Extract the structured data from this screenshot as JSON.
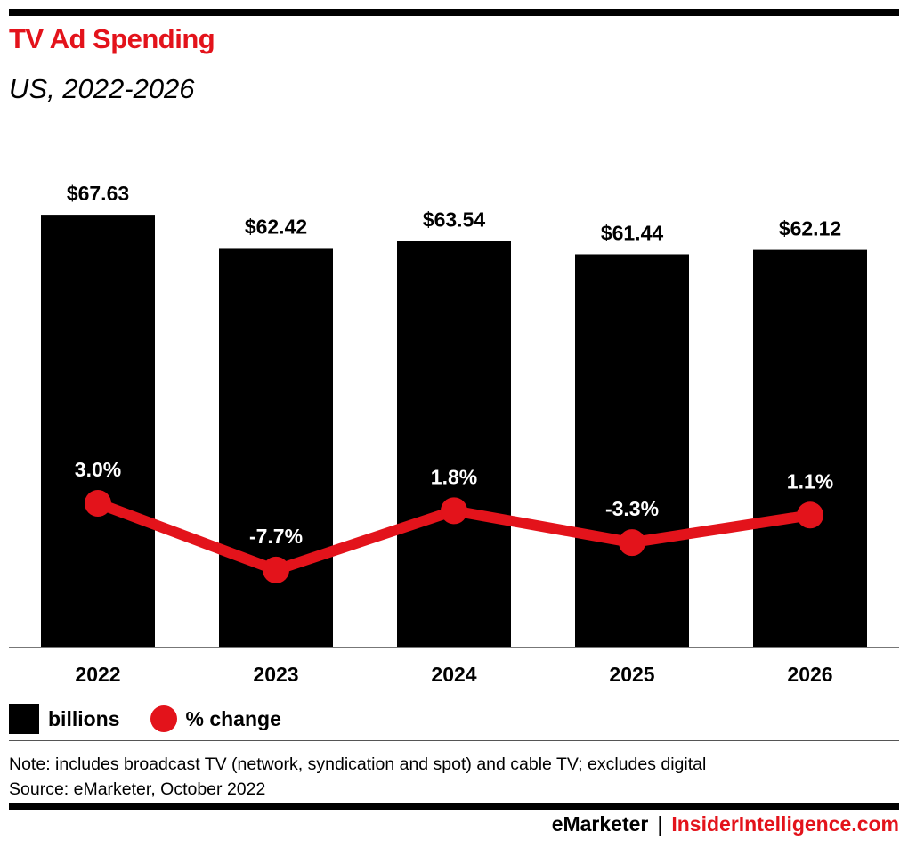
{
  "header": {
    "title": "TV Ad Spending",
    "subtitle": "US, 2022-2026"
  },
  "colors": {
    "title": "#e3131b",
    "bars": "#000000",
    "line": "#e3131b",
    "point_label": "#ffffff"
  },
  "legend": {
    "bar_label": "billions",
    "line_label": "% change"
  },
  "notes": {
    "note": "Note: includes broadcast TV (network, syndication and spot) and cable TV; excludes digital",
    "source": "Source: eMarketer, October 2022"
  },
  "footer": {
    "brand1": "eMarketer",
    "separator": "|",
    "brand2": "InsiderIntelligence.com"
  },
  "chart_data": {
    "type": "bar",
    "categories": [
      "2022",
      "2023",
      "2024",
      "2025",
      "2026"
    ],
    "series": [
      {
        "name": "billions",
        "type": "bar",
        "values": [
          67.63,
          62.42,
          63.54,
          61.44,
          62.12
        ],
        "labels": [
          "$67.63",
          "$62.42",
          "$63.54",
          "$61.44",
          "$62.12"
        ]
      },
      {
        "name": "% change",
        "type": "line",
        "values": [
          3.0,
          -7.7,
          1.8,
          -3.3,
          1.1
        ],
        "labels": [
          "3.0%",
          "-7.7%",
          "1.8%",
          "-3.3%",
          "1.1%"
        ]
      }
    ],
    "grid": false,
    "legend_position": "bottom-left"
  }
}
